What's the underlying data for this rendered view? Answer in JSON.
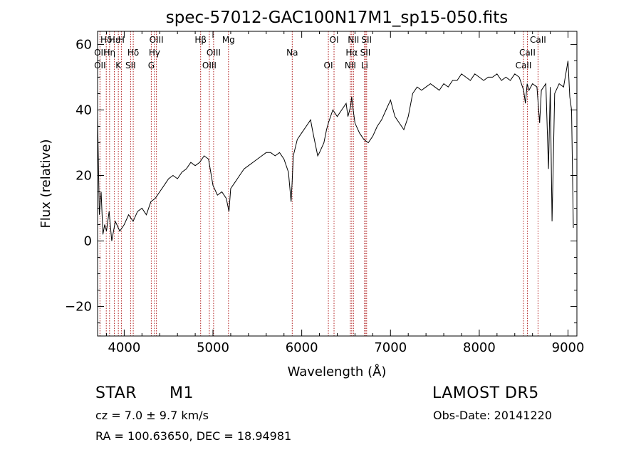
{
  "chart_data": {
    "type": "line",
    "title": "spec-57012-GAC100N17M1_sp15-050.fits",
    "xlabel": "Wavelength (Å)",
    "ylabel": "Flux (relative)",
    "xlim": [
      3700,
      9100
    ],
    "ylim": [
      -29,
      64
    ],
    "xticks": [
      4000,
      5000,
      6000,
      7000,
      8000,
      9000
    ],
    "xtick_labels": [
      "4000",
      "5000",
      "6000",
      "7000",
      "8000",
      "9000"
    ],
    "yticks": [
      -20,
      0,
      20,
      40,
      60
    ],
    "ytick_labels": [
      "−20",
      "0",
      "20",
      "40",
      "60"
    ],
    "line_color": "#000000",
    "marker_color": "#b22222",
    "series": [
      {
        "x": [
          3700,
          3720,
          3740,
          3760,
          3780,
          3800,
          3830,
          3860,
          3900,
          3950,
          4000,
          4050,
          4100,
          4150,
          4200,
          4250,
          4300,
          4350,
          4400,
          4450,
          4500,
          4550,
          4600,
          4650,
          4700,
          4750,
          4800,
          4850,
          4900,
          4950,
          5000,
          5050,
          5100,
          5150,
          5180,
          5200,
          5250,
          5300,
          5350,
          5400,
          5450,
          5500,
          5550,
          5600,
          5650,
          5700,
          5750,
          5800,
          5850,
          5880,
          5892,
          5905,
          5950,
          6000,
          6050,
          6100,
          6120,
          6150,
          6180,
          6200,
          6250,
          6280,
          6300,
          6350,
          6400,
          6450,
          6500,
          6520,
          6550,
          6563,
          6580,
          6600,
          6650,
          6700,
          6750,
          6800,
          6850,
          6900,
          6950,
          7000,
          7050,
          7100,
          7150,
          7200,
          7250,
          7300,
          7350,
          7400,
          7450,
          7500,
          7550,
          7600,
          7650,
          7700,
          7750,
          7800,
          7850,
          7900,
          7950,
          8000,
          8050,
          8100,
          8150,
          8200,
          8250,
          8300,
          8350,
          8400,
          8450,
          8500,
          8520,
          8540,
          8560,
          8600,
          8650,
          8680,
          8700,
          8750,
          8780,
          8800,
          8820,
          8850,
          8900,
          8950,
          9000,
          9020,
          9040,
          9060
        ],
        "y": [
          38,
          8,
          15,
          2,
          5,
          3,
          9,
          0,
          6,
          3,
          5,
          8,
          6,
          9,
          10,
          8,
          12,
          13,
          15,
          17,
          19,
          20,
          19,
          21,
          22,
          24,
          23,
          24,
          26,
          25,
          17,
          14,
          15,
          13,
          9,
          16,
          18,
          20,
          22,
          23,
          24,
          25,
          26,
          27,
          27,
          26,
          27,
          25,
          21,
          12,
          18,
          26,
          31,
          33,
          35,
          37,
          34,
          30,
          26,
          27,
          30,
          34,
          36,
          40,
          38,
          40,
          42,
          38,
          41,
          44,
          40,
          36,
          33,
          31,
          30,
          32,
          35,
          37,
          40,
          43,
          38,
          36,
          34,
          38,
          45,
          47,
          46,
          47,
          48,
          47,
          46,
          48,
          47,
          49,
          49,
          51,
          50,
          49,
          51,
          50,
          49,
          50,
          50,
          51,
          49,
          50,
          49,
          51,
          50,
          46,
          42,
          48,
          46,
          48,
          47,
          36,
          46,
          48,
          22,
          47,
          6,
          45,
          48,
          47,
          55,
          44,
          40,
          4
        ]
      }
    ],
    "lines": [
      {
        "label": "Hδ",
        "x": 3798
      },
      {
        "label": "OII",
        "x": 3727
      },
      {
        "label": "OII",
        "x": 3727
      },
      {
        "label": "Hε",
        "x": 3889
      },
      {
        "label": "Hη",
        "x": 3835
      },
      {
        "label": "K",
        "x": 3934
      },
      {
        "label": "H",
        "x": 3968
      },
      {
        "label": "Hδ",
        "x": 4102
      },
      {
        "label": "SII",
        "x": 4072
      },
      {
        "label": "OIII",
        "x": 4363
      },
      {
        "label": "Hγ",
        "x": 4341
      },
      {
        "label": "G",
        "x": 4305
      },
      {
        "label": "Hβ",
        "x": 4861
      },
      {
        "label": "OIII",
        "x": 5007
      },
      {
        "label": "OIII",
        "x": 4959
      },
      {
        "label": "Mg",
        "x": 5175
      },
      {
        "label": "Na",
        "x": 5893
      },
      {
        "label": "OI",
        "x": 6300
      },
      {
        "label": "OI",
        "x": 6364
      },
      {
        "label": "Hα",
        "x": 6563
      },
      {
        "label": "NII",
        "x": 6548
      },
      {
        "label": "NII",
        "x": 6583
      },
      {
        "label": "SII",
        "x": 6717
      },
      {
        "label": "Li",
        "x": 6708
      },
      {
        "label": "SII",
        "x": 6731
      },
      {
        "label": "CaII",
        "x": 8542
      },
      {
        "label": "CaII",
        "x": 8498
      },
      {
        "label": "CaII",
        "x": 8662
      }
    ]
  },
  "info": {
    "object_class": "STAR",
    "subclass": "M1",
    "survey": "LAMOST DR5",
    "redshift_line": "cz = 7.0 ± 9.7 km/s",
    "obs_date": "Obs-Date: 20141220",
    "coords": "RA = 100.63650, DEC =  18.94981"
  }
}
